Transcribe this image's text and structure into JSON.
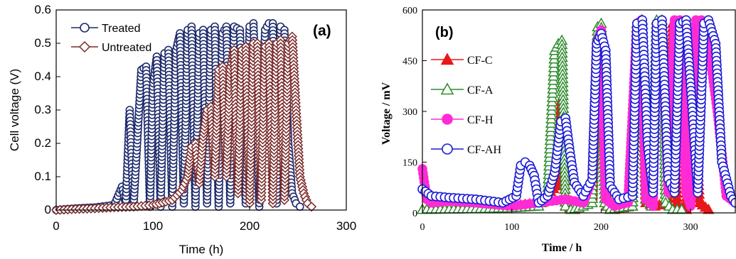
{
  "chart_data": [
    {
      "type": "line",
      "panel_label": "(a)",
      "xlabel": "Time (h)",
      "ylabel": "Cell voltage (V)",
      "xlim": [
        0,
        300
      ],
      "ylim": [
        0,
        0.6
      ],
      "xticks": [
        "0",
        "100",
        "200",
        "300"
      ],
      "yticks": [
        "0",
        "0.1",
        "0.2",
        "0.3",
        "0.4",
        "0.5",
        "0.6"
      ],
      "legend_position": "top-left",
      "series": [
        {
          "name": "Treated",
          "color": "#1c2a6b",
          "marker": "open-circle",
          "x": [
            0,
            20,
            40,
            60,
            68,
            72,
            76,
            80,
            88,
            93,
            97,
            100,
            104,
            108,
            112,
            116,
            120,
            124,
            128,
            132,
            136,
            140,
            144,
            148,
            152,
            156,
            160,
            164,
            168,
            172,
            176,
            180,
            184,
            190,
            196,
            200,
            204,
            210,
            216,
            220,
            224,
            228,
            232,
            236,
            240,
            244,
            248,
            252
          ],
          "y": [
            0,
            0.005,
            0.008,
            0.015,
            0.07,
            0.02,
            0.3,
            0.01,
            0.42,
            0.43,
            0.01,
            0.37,
            0.46,
            0.01,
            0.47,
            0.48,
            0.01,
            0.48,
            0.53,
            0.02,
            0.54,
            0.55,
            0.01,
            0.53,
            0.54,
            0.02,
            0.54,
            0.55,
            0.01,
            0.53,
            0.55,
            0.02,
            0.55,
            0.54,
            0.02,
            0.55,
            0.56,
            0.01,
            0.54,
            0.56,
            0.56,
            0.02,
            0.55,
            0.54,
            0.2,
            0.05,
            0.02,
            0.01
          ]
        },
        {
          "name": "Untreated",
          "color": "#7a2a2a",
          "marker": "open-diamond",
          "x": [
            0,
            20,
            40,
            60,
            80,
            100,
            120,
            130,
            136,
            140,
            144,
            148,
            152,
            156,
            160,
            164,
            168,
            172,
            176,
            180,
            184,
            188,
            192,
            196,
            200,
            204,
            208,
            212,
            216,
            220,
            224,
            228,
            232,
            236,
            240,
            244,
            248,
            252,
            256,
            260,
            264
          ],
          "y": [
            0,
            0.003,
            0.005,
            0.008,
            0.01,
            0.015,
            0.03,
            0.06,
            0.1,
            0.19,
            0.2,
            0.08,
            0.22,
            0.3,
            0.31,
            0.1,
            0.42,
            0.43,
            0.1,
            0.42,
            0.48,
            0.05,
            0.48,
            0.49,
            0.02,
            0.5,
            0.5,
            0.03,
            0.49,
            0.5,
            0.02,
            0.5,
            0.51,
            0.03,
            0.5,
            0.52,
            0.3,
            0.1,
            0.05,
            0.02,
            0.01
          ]
        }
      ]
    },
    {
      "type": "line",
      "panel_label": "(b)",
      "xlabel": "Time / h",
      "ylabel": "Voltage / mV",
      "xlim": [
        0,
        350
      ],
      "ylim": [
        0,
        600
      ],
      "xticks": [
        "0",
        "100",
        "200",
        "300"
      ],
      "yticks": [
        "0",
        "150",
        "300",
        "450",
        "600"
      ],
      "legend_position": "left",
      "series": [
        {
          "name": "CF-C",
          "color": "#e8171b",
          "marker": "filled-triangle",
          "x": [
            0,
            50,
            100,
            130,
            150,
            155,
            160,
            170,
            190,
            196,
            200,
            206,
            215,
            235,
            240,
            245,
            250,
            260,
            275,
            280,
            285,
            295,
            300,
            304,
            310,
            320
          ],
          "y": [
            10,
            15,
            20,
            30,
            80,
            330,
            20,
            10,
            50,
            520,
            540,
            20,
            10,
            20,
            560,
            570,
            30,
            20,
            30,
            560,
            20,
            10,
            300,
            320,
            30,
            10
          ]
        },
        {
          "name": "CF-A",
          "color": "#2e8b2e",
          "marker": "open-triangle",
          "x": [
            0,
            50,
            100,
            130,
            140,
            148,
            152,
            156,
            160,
            166,
            175,
            190,
            196,
            200,
            204,
            210,
            220,
            235,
            240,
            246,
            250,
            256,
            262,
            268,
            272,
            280,
            290
          ],
          "y": [
            10,
            12,
            15,
            20,
            50,
            480,
            500,
            510,
            20,
            10,
            15,
            30,
            550,
            560,
            30,
            10,
            15,
            20,
            560,
            570,
            40,
            20,
            570,
            570,
            30,
            10,
            10
          ]
        },
        {
          "name": "CF-H",
          "color": "#ff2bd5",
          "marker": "filled-circle",
          "x": [
            0,
            5,
            10,
            30,
            60,
            100,
            130,
            160,
            180,
            190,
            195,
            200,
            205,
            215,
            230,
            240,
            245,
            250,
            258,
            262,
            268,
            275,
            282,
            288,
            295,
            300,
            306,
            312,
            320,
            330,
            340,
            350
          ],
          "y": [
            130,
            40,
            30,
            35,
            30,
            20,
            30,
            40,
            30,
            100,
            500,
            540,
            40,
            20,
            30,
            560,
            570,
            40,
            20,
            560,
            570,
            60,
            570,
            570,
            60,
            20,
            570,
            570,
            500,
            300,
            50,
            30
          ]
        },
        {
          "name": "CF-AH",
          "color": "#1a1ad6",
          "marker": "open-circle",
          "x": [
            0,
            10,
            30,
            60,
            90,
            105,
            110,
            115,
            120,
            125,
            130,
            140,
            148,
            155,
            160,
            165,
            170,
            180,
            190,
            195,
            200,
            205,
            210,
            220,
            235,
            240,
            246,
            252,
            258,
            262,
            268,
            275,
            282,
            288,
            295,
            302,
            308,
            315,
            320,
            328,
            335,
            345,
            350
          ],
          "y": [
            70,
            50,
            45,
            40,
            30,
            50,
            140,
            150,
            140,
            110,
            30,
            50,
            120,
            270,
            280,
            180,
            90,
            50,
            100,
            500,
            530,
            480,
            80,
            40,
            50,
            560,
            570,
            200,
            60,
            560,
            570,
            100,
            60,
            560,
            570,
            300,
            60,
            560,
            570,
            500,
            150,
            50,
            30
          ]
        }
      ]
    }
  ]
}
